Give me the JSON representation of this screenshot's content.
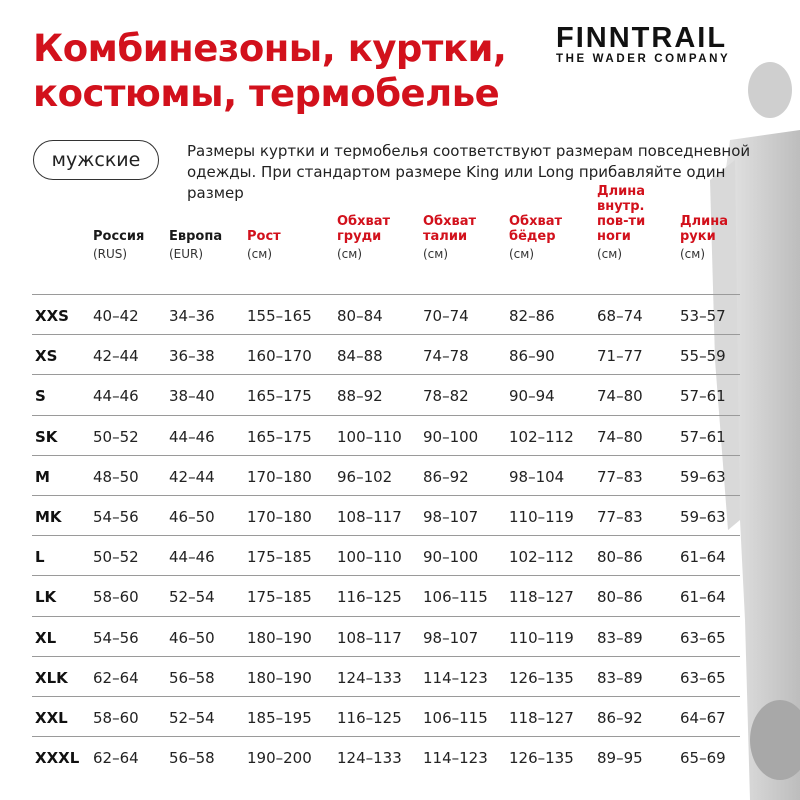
{
  "title": [
    "Комбинезоны, куртки,",
    "костюмы, термобелье"
  ],
  "logo": {
    "brand": "FINNTRAIL",
    "tagline": "THE WADER COMPANY"
  },
  "category": "мужские",
  "note": "Размеры куртки и термобелья соответствуют размерам повседневной одежды. При стандартом размере King или Long прибавляйте один размер",
  "colors": {
    "accent": "#d2111c",
    "text": "#1a1a1a"
  },
  "columns": [
    {
      "label": "",
      "unit": ""
    },
    {
      "label": "Россия",
      "unit": "(RUS)",
      "red": false
    },
    {
      "label": "Европа",
      "unit": "(EUR)",
      "red": false
    },
    {
      "label": "Рост",
      "unit": "(см)",
      "red": true
    },
    {
      "label": "Обхват груди",
      "unit": "(см)",
      "red": true
    },
    {
      "label": "Обхват талии",
      "unit": "(см)",
      "red": true
    },
    {
      "label": "Обхват бёдер",
      "unit": "(см)",
      "red": true
    },
    {
      "label": "Длина внутр. пов-ти ноги",
      "unit": "(см)",
      "red": true
    },
    {
      "label": "Длина руки",
      "unit": "(см)",
      "red": true
    }
  ],
  "rows": [
    [
      "XXS",
      "40–42",
      "34–36",
      "155–165",
      "80–84",
      "70–74",
      "82–86",
      "68–74",
      "53–57"
    ],
    [
      "XS",
      "42–44",
      "36–38",
      "160–170",
      "84–88",
      "74–78",
      "86–90",
      "71–77",
      "55–59"
    ],
    [
      "S",
      "44–46",
      "38–40",
      "165–175",
      "88–92",
      "78–82",
      "90–94",
      "74–80",
      "57–61"
    ],
    [
      "SK",
      "50–52",
      "44–46",
      "165–175",
      "100–110",
      "90–100",
      "102–112",
      "74–80",
      "57–61"
    ],
    [
      "M",
      "48–50",
      "42–44",
      "170–180",
      "96–102",
      "86–92",
      "98–104",
      "77–83",
      "59–63"
    ],
    [
      "MK",
      "54–56",
      "46–50",
      "170–180",
      "108–117",
      "98–107",
      "110–119",
      "77–83",
      "59–63"
    ],
    [
      "L",
      "50–52",
      "44–46",
      "175–185",
      "100–110",
      "90–100",
      "102–112",
      "80–86",
      "61–64"
    ],
    [
      "LK",
      "58–60",
      "52–54",
      "175–185",
      "116–125",
      "106–115",
      "118–127",
      "80–86",
      "61–64"
    ],
    [
      "XL",
      "54–56",
      "46–50",
      "180–190",
      "108–117",
      "98–107",
      "110–119",
      "83–89",
      "63–65"
    ],
    [
      "XLK",
      "62–64",
      "56–58",
      "180–190",
      "124–133",
      "114–123",
      "126–135",
      "83–89",
      "63–65"
    ],
    [
      "XXL",
      "58–60",
      "52–54",
      "185–195",
      "116–125",
      "106–115",
      "118–127",
      "86–92",
      "64–67"
    ],
    [
      "XXXL",
      "62–64",
      "56–58",
      "190–200",
      "124–133",
      "114–123",
      "126–135",
      "89–95",
      "65–69"
    ]
  ]
}
